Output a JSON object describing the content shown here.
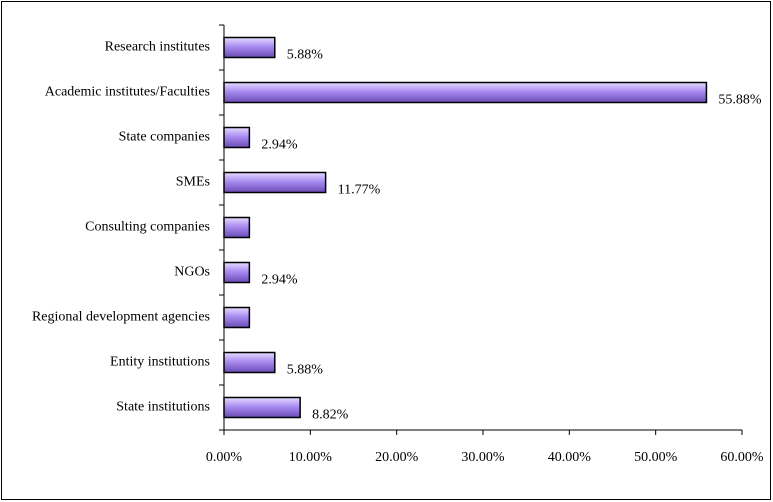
{
  "chart_data": {
    "type": "bar",
    "orientation": "horizontal",
    "categories": [
      "Research institutes",
      "Academic institutes/Faculties",
      "State companies",
      "SMEs",
      "Consulting companies",
      "NGOs",
      "Regional development agencies",
      "Entity institutions",
      "State institutions"
    ],
    "values": [
      5.88,
      55.88,
      2.94,
      11.77,
      2.94,
      2.94,
      2.94,
      5.88,
      8.82
    ],
    "value_labels": [
      "5.88%",
      "55.88%",
      "2.94%",
      "11.77%",
      null,
      "2.94%",
      null,
      "5.88%",
      "8.82%"
    ],
    "color": "#9b7fe6",
    "xlim": [
      0,
      60
    ],
    "xticks": [
      {
        "value": 0,
        "label": "0.00%"
      },
      {
        "value": 10,
        "label": "10.00%"
      },
      {
        "value": 20,
        "label": "20.00%"
      },
      {
        "value": 30,
        "label": "30.00%"
      },
      {
        "value": 40,
        "label": "40.00%"
      },
      {
        "value": 50,
        "label": "50.00%"
      },
      {
        "value": 60,
        "label": "60.00%"
      }
    ],
    "grid": false
  }
}
